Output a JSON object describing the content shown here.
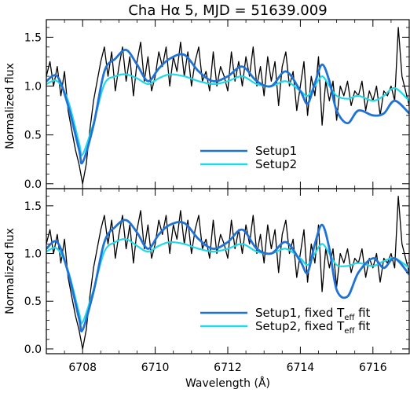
{
  "title": "Cha Hα 5, MJD = 51639.009",
  "xlabel": "Wavelength (Å)",
  "ylabel": "Normalized flux",
  "colors": {
    "observed": "#000000",
    "setup1": "#1f72d6",
    "setup2": "#1fd9e8"
  },
  "chart_data": [
    {
      "type": "line",
      "panel": "top",
      "xlim": [
        6707.0,
        6717.0
      ],
      "ylim": [
        -0.05,
        1.68
      ],
      "xticks": [
        6708,
        6710,
        6712,
        6714,
        6716
      ],
      "yticks": [
        0.0,
        0.5,
        1.0,
        1.5
      ],
      "ytick_labels": [
        "0.0",
        "0.5",
        "1.0",
        "1.5"
      ],
      "legend": {
        "position": "lower-right",
        "entries": [
          {
            "label": "Setup1",
            "series": "setup1"
          },
          {
            "label": "Setup2",
            "series": "setup2"
          }
        ]
      },
      "series": [
        {
          "name": "Setup1",
          "key": "setup1",
          "x": [
            6707.0,
            6707.3,
            6707.6,
            6707.9,
            6708.0,
            6708.3,
            6708.6,
            6708.9,
            6709.2,
            6709.5,
            6709.8,
            6710.1,
            6710.4,
            6710.8,
            6711.2,
            6711.6,
            6712.0,
            6712.4,
            6712.8,
            6713.2,
            6713.6,
            6714.0,
            6714.2,
            6714.4,
            6714.6,
            6714.8,
            6715.0,
            6715.3,
            6715.6,
            6716.0,
            6716.3,
            6716.6,
            6717.0
          ],
          "y": [
            1.05,
            1.1,
            0.8,
            0.35,
            0.22,
            0.6,
            1.15,
            1.28,
            1.37,
            1.22,
            1.05,
            1.18,
            1.28,
            1.32,
            1.15,
            1.05,
            1.1,
            1.2,
            1.05,
            1.0,
            1.15,
            0.95,
            0.82,
            1.03,
            1.22,
            1.05,
            0.75,
            0.62,
            0.75,
            0.7,
            0.72,
            0.85,
            0.72
          ]
        },
        {
          "name": "Setup2",
          "key": "setup2",
          "x": [
            6707.0,
            6707.3,
            6707.6,
            6707.9,
            6708.0,
            6708.3,
            6708.6,
            6708.9,
            6709.2,
            6709.5,
            6709.8,
            6710.1,
            6710.4,
            6710.8,
            6711.2,
            6711.6,
            6712.0,
            6712.4,
            6712.8,
            6713.2,
            6713.6,
            6714.0,
            6714.2,
            6714.4,
            6714.6,
            6714.8,
            6715.0,
            6715.3,
            6715.6,
            6716.0,
            6716.3,
            6716.6,
            6717.0
          ],
          "y": [
            1.02,
            1.05,
            0.85,
            0.42,
            0.3,
            0.62,
            1.02,
            1.1,
            1.12,
            1.08,
            1.02,
            1.08,
            1.12,
            1.1,
            1.05,
            1.02,
            1.05,
            1.1,
            1.02,
            1.0,
            1.05,
            0.95,
            0.9,
            1.0,
            1.1,
            1.0,
            0.9,
            0.87,
            0.9,
            0.85,
            0.9,
            0.98,
            0.85
          ]
        },
        {
          "name": "",
          "key": "observed",
          "x": [
            6707.0,
            6707.1,
            6707.2,
            6707.3,
            6707.4,
            6707.5,
            6707.6,
            6707.7,
            6707.8,
            6707.9,
            6708.0,
            6708.1,
            6708.2,
            6708.3,
            6708.4,
            6708.5,
            6708.6,
            6708.7,
            6708.8,
            6708.9,
            6709.0,
            6709.1,
            6709.2,
            6709.3,
            6709.4,
            6709.5,
            6709.6,
            6709.7,
            6709.8,
            6709.9,
            6710.0,
            6710.1,
            6710.2,
            6710.3,
            6710.4,
            6710.5,
            6710.6,
            6710.7,
            6710.8,
            6710.9,
            6711.0,
            6711.1,
            6711.2,
            6711.3,
            6711.4,
            6711.5,
            6711.6,
            6711.7,
            6711.8,
            6711.9,
            6712.0,
            6712.1,
            6712.2,
            6712.3,
            6712.4,
            6712.5,
            6712.6,
            6712.7,
            6712.8,
            6712.9,
            6713.0,
            6713.1,
            6713.2,
            6713.3,
            6713.4,
            6713.5,
            6713.6,
            6713.7,
            6713.8,
            6713.9,
            6714.0,
            6714.1,
            6714.2,
            6714.3,
            6714.4,
            6714.5,
            6714.6,
            6714.7,
            6714.8,
            6714.9,
            6715.0,
            6715.1,
            6715.2,
            6715.3,
            6715.4,
            6715.5,
            6715.6,
            6715.7,
            6715.8,
            6715.9,
            6716.0,
            6716.1,
            6716.2,
            6716.3,
            6716.4,
            6716.5,
            6716.6,
            6716.7,
            6716.8,
            6716.9,
            6717.0
          ],
          "y": [
            1.1,
            1.25,
            1.0,
            1.2,
            0.9,
            1.15,
            0.75,
            0.55,
            0.35,
            0.2,
            0.0,
            0.2,
            0.55,
            0.85,
            1.05,
            1.25,
            1.4,
            1.1,
            1.35,
            0.95,
            1.2,
            1.4,
            1.05,
            1.3,
            0.9,
            1.25,
            1.45,
            1.05,
            1.3,
            0.95,
            1.1,
            1.35,
            1.2,
            1.4,
            1.0,
            1.3,
            1.15,
            1.45,
            1.1,
            1.35,
            1.0,
            1.25,
            1.4,
            1.05,
            1.15,
            0.95,
            1.35,
            1.0,
            1.2,
            1.1,
            0.95,
            1.35,
            1.05,
            1.25,
            1.0,
            1.3,
            1.1,
            1.4,
            1.0,
            1.2,
            0.9,
            1.3,
            1.05,
            1.25,
            0.8,
            1.2,
            1.35,
            1.0,
            1.15,
            0.75,
            1.0,
            1.25,
            0.7,
            1.1,
            0.9,
            1.3,
            0.6,
            1.05,
            0.85,
            1.05,
            0.65,
            1.0,
            0.9,
            1.05,
            0.8,
            0.95,
            0.9,
            1.05,
            0.75,
            0.95,
            0.85,
            1.0,
            0.7,
            0.95,
            0.9,
            1.0,
            0.85,
            1.6,
            1.1,
            0.95,
            0.8
          ]
        }
      ]
    },
    {
      "type": "line",
      "panel": "bottom",
      "xlim": [
        6707.0,
        6717.0
      ],
      "ylim": [
        -0.05,
        1.68
      ],
      "xticks": [
        6708,
        6710,
        6712,
        6714,
        6716
      ],
      "xtick_labels": [
        "6708",
        "6710",
        "6712",
        "6714",
        "6716"
      ],
      "yticks": [
        0.0,
        0.5,
        1.0,
        1.5
      ],
      "ytick_labels": [
        "0.0",
        "0.5",
        "1.0",
        "1.5"
      ],
      "legend": {
        "position": "lower-right",
        "entries": [
          {
            "label": "Setup1, fixed T",
            "sub": "eff",
            "tail": " fit",
            "series": "setup1"
          },
          {
            "label": "Setup2, fixed T",
            "sub": "eff",
            "tail": " fit",
            "series": "setup2"
          }
        ]
      },
      "series": [
        {
          "name": "Setup1, fixed Teff fit",
          "key": "setup1",
          "x": [
            6707.0,
            6707.3,
            6707.6,
            6707.9,
            6708.0,
            6708.3,
            6708.6,
            6708.9,
            6709.2,
            6709.5,
            6709.8,
            6710.1,
            6710.4,
            6710.8,
            6711.2,
            6711.6,
            6712.0,
            6712.4,
            6712.8,
            6713.2,
            6713.6,
            6714.0,
            6714.2,
            6714.4,
            6714.6,
            6714.8,
            6715.0,
            6715.3,
            6715.6,
            6716.0,
            6716.3,
            6716.6,
            6717.0
          ],
          "y": [
            1.05,
            1.12,
            0.8,
            0.32,
            0.2,
            0.6,
            1.12,
            1.28,
            1.35,
            1.22,
            1.05,
            1.2,
            1.3,
            1.32,
            1.15,
            1.05,
            1.12,
            1.25,
            1.05,
            1.0,
            1.12,
            0.92,
            0.8,
            1.1,
            1.3,
            1.05,
            0.62,
            0.55,
            0.8,
            0.95,
            0.85,
            0.95,
            0.78
          ]
        },
        {
          "name": "Setup2, fixed Teff fit",
          "key": "setup2",
          "x": [
            6707.0,
            6707.3,
            6707.6,
            6707.9,
            6708.0,
            6708.3,
            6708.6,
            6708.9,
            6709.2,
            6709.5,
            6709.8,
            6710.1,
            6710.4,
            6710.8,
            6711.2,
            6711.6,
            6712.0,
            6712.4,
            6712.8,
            6713.2,
            6713.6,
            6714.0,
            6714.2,
            6714.4,
            6714.6,
            6714.8,
            6715.0,
            6715.3,
            6715.6,
            6716.0,
            6716.3,
            6716.6,
            6717.0
          ],
          "y": [
            1.02,
            1.05,
            0.82,
            0.38,
            0.28,
            0.62,
            1.02,
            1.12,
            1.15,
            1.08,
            1.02,
            1.08,
            1.12,
            1.1,
            1.05,
            1.02,
            1.05,
            1.1,
            1.02,
            1.0,
            1.05,
            0.95,
            0.88,
            1.0,
            1.1,
            1.0,
            0.88,
            0.87,
            0.9,
            0.87,
            0.92,
            0.95,
            0.85
          ]
        },
        {
          "name": "",
          "key": "observed",
          "x": [
            6707.0,
            6707.1,
            6707.2,
            6707.3,
            6707.4,
            6707.5,
            6707.6,
            6707.7,
            6707.8,
            6707.9,
            6708.0,
            6708.1,
            6708.2,
            6708.3,
            6708.4,
            6708.5,
            6708.6,
            6708.7,
            6708.8,
            6708.9,
            6709.0,
            6709.1,
            6709.2,
            6709.3,
            6709.4,
            6709.5,
            6709.6,
            6709.7,
            6709.8,
            6709.9,
            6710.0,
            6710.1,
            6710.2,
            6710.3,
            6710.4,
            6710.5,
            6710.6,
            6710.7,
            6710.8,
            6710.9,
            6711.0,
            6711.1,
            6711.2,
            6711.3,
            6711.4,
            6711.5,
            6711.6,
            6711.7,
            6711.8,
            6711.9,
            6712.0,
            6712.1,
            6712.2,
            6712.3,
            6712.4,
            6712.5,
            6712.6,
            6712.7,
            6712.8,
            6712.9,
            6713.0,
            6713.1,
            6713.2,
            6713.3,
            6713.4,
            6713.5,
            6713.6,
            6713.7,
            6713.8,
            6713.9,
            6714.0,
            6714.1,
            6714.2,
            6714.3,
            6714.4,
            6714.5,
            6714.6,
            6714.7,
            6714.8,
            6714.9,
            6715.0,
            6715.1,
            6715.2,
            6715.3,
            6715.4,
            6715.5,
            6715.6,
            6715.7,
            6715.8,
            6715.9,
            6716.0,
            6716.1,
            6716.2,
            6716.3,
            6716.4,
            6716.5,
            6716.6,
            6716.7,
            6716.8,
            6716.9,
            6717.0
          ],
          "y": [
            1.1,
            1.25,
            1.0,
            1.2,
            0.9,
            1.15,
            0.75,
            0.55,
            0.35,
            0.2,
            0.0,
            0.2,
            0.55,
            0.85,
            1.05,
            1.25,
            1.4,
            1.1,
            1.35,
            0.95,
            1.2,
            1.4,
            1.05,
            1.3,
            0.9,
            1.25,
            1.45,
            1.05,
            1.3,
            0.95,
            1.1,
            1.35,
            1.2,
            1.4,
            1.0,
            1.3,
            1.15,
            1.45,
            1.1,
            1.35,
            1.0,
            1.25,
            1.4,
            1.05,
            1.15,
            0.95,
            1.35,
            1.0,
            1.2,
            1.1,
            0.95,
            1.35,
            1.05,
            1.25,
            1.0,
            1.3,
            1.1,
            1.4,
            1.0,
            1.2,
            0.9,
            1.3,
            1.05,
            1.25,
            0.8,
            1.2,
            1.35,
            1.0,
            1.15,
            0.75,
            1.0,
            1.25,
            0.7,
            1.1,
            0.9,
            1.3,
            0.6,
            1.05,
            0.85,
            1.05,
            0.65,
            1.0,
            0.9,
            1.05,
            0.8,
            0.95,
            0.9,
            1.05,
            0.75,
            0.95,
            0.85,
            1.0,
            0.7,
            0.95,
            0.9,
            1.0,
            0.85,
            1.6,
            1.1,
            0.95,
            0.8
          ]
        }
      ]
    }
  ]
}
